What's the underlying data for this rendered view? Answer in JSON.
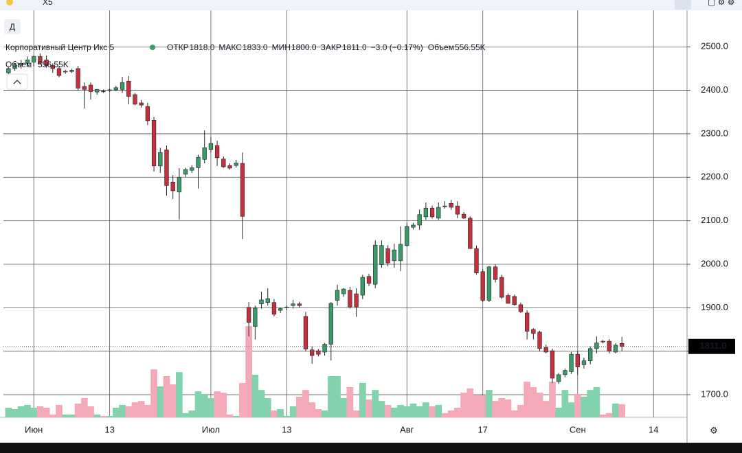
{
  "toolbar": {
    "search": "X5",
    "interval": "Д"
  },
  "chart_data": {
    "type": "candlestick",
    "title": "Корпоративный Центр Икс 5",
    "legend_items": [
      {
        "label": "ОТКР",
        "value": "1818.0"
      },
      {
        "label": "МАКС",
        "value": "1833.0"
      },
      {
        "label": "МИН",
        "value": "1800.0"
      },
      {
        "label": "ЗАКР",
        "value": "1811.0"
      }
    ],
    "change": "−3.0 (−0.17%)",
    "volume_label": "Объем",
    "volume_value": "556.55K",
    "open": [
      2440,
      2450,
      2458,
      2462,
      2465,
      2478,
      2470,
      2457,
      2450,
      2442,
      2443,
      2450,
      2409,
      2412,
      2396,
      2398,
      2400,
      2401,
      2402,
      2421,
      2390,
      2371,
      2363,
      2331,
      2226,
      2263,
      2189,
      2166,
      2207,
      2216,
      2222,
      2241,
      2264,
      2273,
      2242,
      2227,
      2227,
      2232,
      1901,
      1857,
      1909,
      1912,
      1912,
      1894,
      1900,
      1905,
      1909,
      1880,
      1803,
      1801,
      1798,
      1816,
      1917,
      1932,
      1940,
      1932,
      1929,
      1972,
      1954,
      1999,
      2036,
      2008,
      2008,
      2043,
      2085,
      2090,
      2109,
      2129,
      2106,
      2134,
      2140,
      2134,
      2115,
      2106,
      2036,
      1983,
      1917,
      1994,
      1970,
      1928,
      1926,
      1907,
      1888,
      1850,
      1844,
      1809,
      1801,
      1730,
      1746,
      1753,
      1793,
      1769,
      1778,
      1806,
      1823,
      1823,
      1798,
      1818
    ],
    "high": [
      2455,
      2462,
      2470,
      2478,
      2480,
      2485,
      2480,
      2462,
      2455,
      2447,
      2450,
      2456,
      2418,
      2418,
      2403,
      2402,
      2404,
      2410,
      2431,
      2433,
      2394,
      2378,
      2371,
      2339,
      2268,
      2273,
      2205,
      2221,
      2222,
      2228,
      2252,
      2308,
      2292,
      2284,
      2248,
      2232,
      2240,
      2257,
      1913,
      1905,
      1937,
      1945,
      1920,
      1900,
      1905,
      1918,
      1914,
      1890,
      1811,
      1805,
      1819,
      1913,
      1953,
      1945,
      1948,
      1945,
      1976,
      1978,
      2055,
      2055,
      2044,
      2047,
      2087,
      2095,
      2095,
      2126,
      2142,
      2135,
      2142,
      2145,
      2148,
      2145,
      2120,
      2110,
      2043,
      1989,
      1996,
      1999,
      1976,
      1933,
      1930,
      1912,
      1894,
      1853,
      1847,
      1815,
      1806,
      1750,
      1760,
      1798,
      1800,
      1785,
      1811,
      1834,
      1826,
      1828,
      1818,
      1833
    ],
    "low": [
      2435,
      2445,
      2450,
      2455,
      2455,
      2460,
      2452,
      2440,
      2430,
      2438,
      2440,
      2399,
      2358,
      2379,
      2390,
      2394,
      2396,
      2398,
      2394,
      2368,
      2366,
      2360,
      2320,
      2213,
      2210,
      2158,
      2150,
      2103,
      2200,
      2210,
      2174,
      2232,
      2257,
      2226,
      2222,
      2218,
      2222,
      2058,
      1834,
      1827,
      1898,
      1905,
      1880,
      1888,
      1895,
      1898,
      1900,
      1800,
      1771,
      1788,
      1790,
      1779,
      1905,
      1925,
      1898,
      1879,
      1920,
      1950,
      1945,
      1992,
      1995,
      1992,
      1984,
      2040,
      2080,
      2079,
      2102,
      2105,
      2102,
      2128,
      2125,
      2106,
      2104,
      2036,
      1976,
      1913,
      1913,
      1958,
      1920,
      1910,
      1905,
      1888,
      1827,
      1827,
      1800,
      1795,
      1727,
      1725,
      1740,
      1748,
      1745,
      1760,
      1770,
      1795,
      1818,
      1795,
      1795,
      1800
    ],
    "close": [
      2450,
      2458,
      2462,
      2470,
      2478,
      2462,
      2457,
      2450,
      2434,
      2444,
      2446,
      2405,
      2402,
      2397,
      2402,
      2397,
      2401,
      2406,
      2418,
      2386,
      2368,
      2366,
      2330,
      2226,
      2257,
      2181,
      2169,
      2200,
      2218,
      2222,
      2246,
      2268,
      2278,
      2245,
      2224,
      2221,
      2233,
      2110,
      1866,
      1899,
      1918,
      1921,
      1885,
      1898,
      1901,
      1909,
      1905,
      1805,
      1790,
      1793,
      1816,
      1910,
      1940,
      1943,
      1902,
      1902,
      1970,
      1956,
      2044,
      2043,
      2003,
      2033,
      2046,
      2087,
      2090,
      2114,
      2129,
      2109,
      2131,
      2133,
      2131,
      2115,
      2106,
      2036,
      1980,
      1917,
      1994,
      1965,
      1924,
      1910,
      1907,
      1891,
      1846,
      1841,
      1806,
      1798,
      1738,
      1746,
      1756,
      1793,
      1764,
      1778,
      1806,
      1819,
      1822,
      1800,
      1814,
      1811
    ],
    "volume": [
      410,
      350,
      470,
      530,
      410,
      470,
      410,
      120,
      530,
      120,
      120,
      590,
      820,
      470,
      120,
      60,
      60,
      410,
      530,
      470,
      640,
      700,
      530,
      2050,
      1320,
      1760,
      1410,
      1930,
      180,
      290,
      1110,
      1000,
      820,
      1110,
      1050,
      120,
      60,
      1470,
      3900,
      1820,
      1170,
      820,
      290,
      350,
      60,
      470,
      880,
      1170,
      640,
      350,
      290,
      1760,
      1760,
      820,
      1290,
      290,
      1470,
      760,
      1170,
      700,
      530,
      410,
      530,
      470,
      590,
      470,
      640,
      470,
      530,
      180,
      290,
      410,
      1050,
      1230,
      940,
      940,
      1170,
      700,
      820,
      760,
      290,
      530,
      1520,
      1290,
      1050,
      700,
      1520,
      410,
      1170,
      640,
      1000,
      880,
      1170,
      1290,
      120,
      180,
      590,
      556.55
    ],
    "up_color": "#3a9a68",
    "down_color": "#c4303e",
    "volume_up_color": "#82d2ad",
    "volume_down_color": "#f4a9b9",
    "xlim": [
      -0.8,
      107.3
    ],
    "xticks": [
      {
        "value": 4,
        "label": "Июн"
      },
      {
        "value": 16,
        "label": "13"
      },
      {
        "value": 32,
        "label": "Июл"
      },
      {
        "value": 44,
        "label": "13"
      },
      {
        "value": 63,
        "label": "Авг"
      },
      {
        "value": 75,
        "label": "17"
      },
      {
        "value": 90,
        "label": "Сен"
      },
      {
        "value": 102,
        "label": "14"
      }
    ],
    "ylim": [
      1648,
      2584
    ],
    "yticks": [
      {
        "value": 1700,
        "label": "1700.0"
      },
      {
        "value": 1800,
        "label": "1800.0"
      },
      {
        "value": 1900,
        "label": "1900.0"
      },
      {
        "value": 2000,
        "label": "2000.0"
      },
      {
        "value": 2100,
        "label": "2100.0"
      },
      {
        "value": 2200,
        "label": "2200.0"
      },
      {
        "value": 2300,
        "label": "2300.0"
      },
      {
        "value": 2400,
        "label": "2400.0"
      },
      {
        "value": 2500,
        "label": "2500.0"
      }
    ],
    "volume_ylim": [
      0,
      17400
    ],
    "last_price": {
      "value": 1811,
      "label": "1811.0"
    },
    "grid": true
  }
}
